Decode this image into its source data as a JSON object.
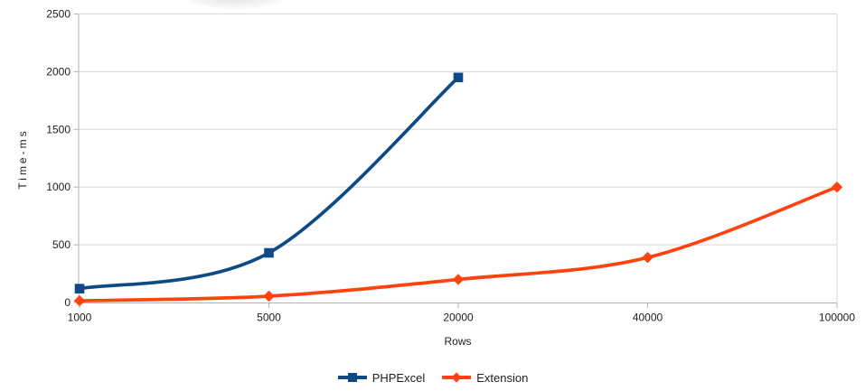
{
  "chart_data": {
    "type": "line",
    "title": "",
    "xlabel": "Rows",
    "ylabel": "Time-ms",
    "categories": [
      "1000",
      "5000",
      "20000",
      "40000",
      "100000"
    ],
    "series": [
      {
        "name": "PHPExcel",
        "color": "#0e4a86",
        "marker": "square",
        "values": [
          120,
          430,
          1950
        ]
      },
      {
        "name": "Extension",
        "color": "#ff420e",
        "marker": "diamond",
        "values": [
          15,
          55,
          200,
          390,
          1000
        ]
      }
    ],
    "ylim": [
      0,
      2500
    ],
    "yticks": [
      0,
      500,
      1000,
      1500,
      2000,
      2500
    ],
    "grid": "horizontal",
    "smooth_lines": true,
    "legend_position": "bottom",
    "style": {
      "grid_color": "#d9d9d9",
      "axis_color": "#b2b2b2",
      "text_color": "#202020",
      "background": "#ffffff"
    }
  }
}
